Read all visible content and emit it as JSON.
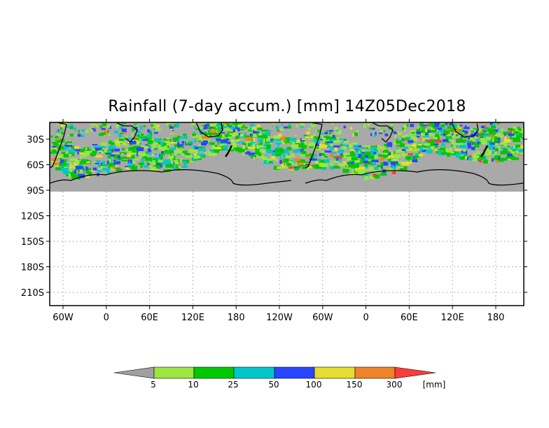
{
  "title": "Rainfall (7-day accum.) [mm] 14Z05Dec2018",
  "map": {
    "lat_ticks": [
      "30S",
      "60S",
      "90S",
      "120S",
      "150S",
      "180S",
      "210S"
    ],
    "lon_ticks": [
      "60W",
      "0",
      "60E",
      "120E",
      "180",
      "120W",
      "60W",
      "0",
      "60E",
      "120E",
      "180"
    ],
    "masked_color": "#a9a9a9",
    "grid": "dotted"
  },
  "colorbar": {
    "unit_label": "[mm]",
    "thresholds": [
      "5",
      "10",
      "25",
      "50",
      "100",
      "150",
      "300"
    ],
    "colors": [
      "#a0a0a0",
      "#9be641",
      "#00c800",
      "#00c8c8",
      "#2846ff",
      "#e6dc32",
      "#f08228",
      "#fa3c3c"
    ]
  }
}
